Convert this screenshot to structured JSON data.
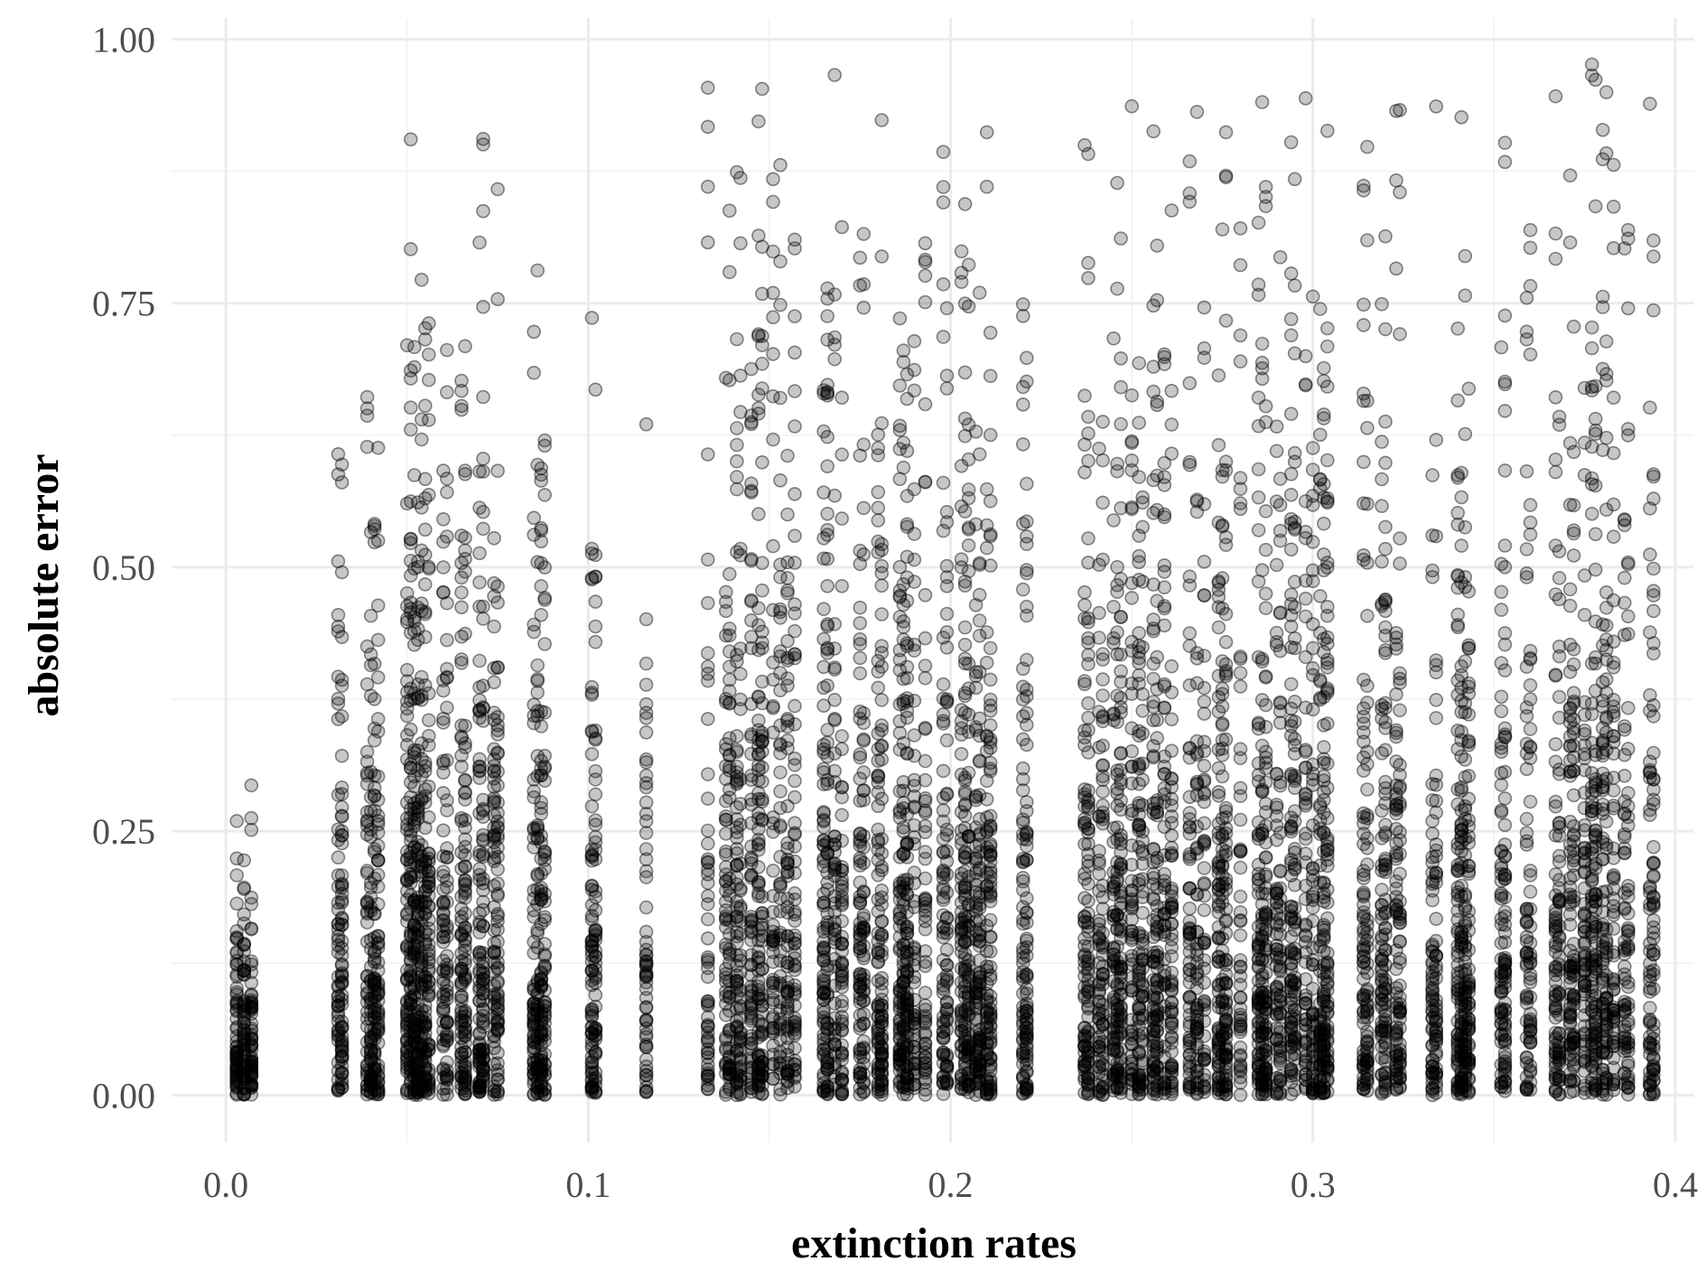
{
  "chart_data": {
    "type": "scatter",
    "xlabel": "extinction rates",
    "ylabel": "absolute error",
    "xlim": [
      -0.015,
      0.405
    ],
    "ylim": [
      -0.045,
      1.02
    ],
    "x_ticks": [
      0.0,
      0.1,
      0.2,
      0.3,
      0.4
    ],
    "x_tick_labels": [
      "0.0",
      "0.1",
      "0.2",
      "0.3",
      "0.4"
    ],
    "y_ticks": [
      0.0,
      0.25,
      0.5,
      0.75,
      1.0
    ],
    "y_tick_labels": [
      "0.00",
      "0.25",
      "0.50",
      "0.75",
      "1.00"
    ],
    "grid": true,
    "point_color": "#000000",
    "point_alpha": 0.22,
    "x_levels": [
      0.003,
      0.005,
      0.007,
      0.031,
      0.032,
      0.039,
      0.04,
      0.041,
      0.042,
      0.05,
      0.051,
      0.052,
      0.053,
      0.054,
      0.055,
      0.056,
      0.06,
      0.061,
      0.065,
      0.066,
      0.07,
      0.071,
      0.074,
      0.075,
      0.085,
      0.086,
      0.087,
      0.088,
      0.101,
      0.102,
      0.116,
      0.133,
      0.138,
      0.139,
      0.141,
      0.142,
      0.145,
      0.147,
      0.148,
      0.151,
      0.153,
      0.155,
      0.157,
      0.165,
      0.166,
      0.168,
      0.17,
      0.175,
      0.176,
      0.18,
      0.181,
      0.186,
      0.187,
      0.188,
      0.19,
      0.193,
      0.198,
      0.199,
      0.203,
      0.204,
      0.205,
      0.207,
      0.208,
      0.21,
      0.211,
      0.22,
      0.221,
      0.237,
      0.238,
      0.241,
      0.242,
      0.245,
      0.246,
      0.247,
      0.25,
      0.252,
      0.253,
      0.256,
      0.257,
      0.259,
      0.261,
      0.266,
      0.268,
      0.27,
      0.274,
      0.275,
      0.276,
      0.28,
      0.285,
      0.286,
      0.287,
      0.29,
      0.291,
      0.294,
      0.295,
      0.298,
      0.3,
      0.302,
      0.303,
      0.304,
      0.314,
      0.315,
      0.319,
      0.32,
      0.323,
      0.324,
      0.333,
      0.334,
      0.34,
      0.341,
      0.342,
      0.343,
      0.352,
      0.353,
      0.359,
      0.36,
      0.367,
      0.368,
      0.371,
      0.372,
      0.375,
      0.377,
      0.378,
      0.38,
      0.381,
      0.383,
      0.386,
      0.387,
      0.393,
      0.394
    ],
    "y_max_by_region": [
      {
        "x_range": [
          0.0,
          0.01
        ],
        "max": 0.33
      },
      {
        "x_range": [
          0.03,
          0.045
        ],
        "max": 0.75
      },
      {
        "x_range": [
          0.05,
          0.08
        ],
        "max": 0.93
      },
      {
        "x_range": [
          0.08,
          0.12
        ],
        "max": 0.8
      },
      {
        "x_range": [
          0.13,
          0.2
        ],
        "max": 0.97
      },
      {
        "x_range": [
          0.2,
          0.25
        ],
        "max": 0.96
      },
      {
        "x_range": [
          0.25,
          0.35
        ],
        "max": 0.96
      },
      {
        "x_range": [
          0.35,
          0.4
        ],
        "max": 0.98
      }
    ]
  }
}
